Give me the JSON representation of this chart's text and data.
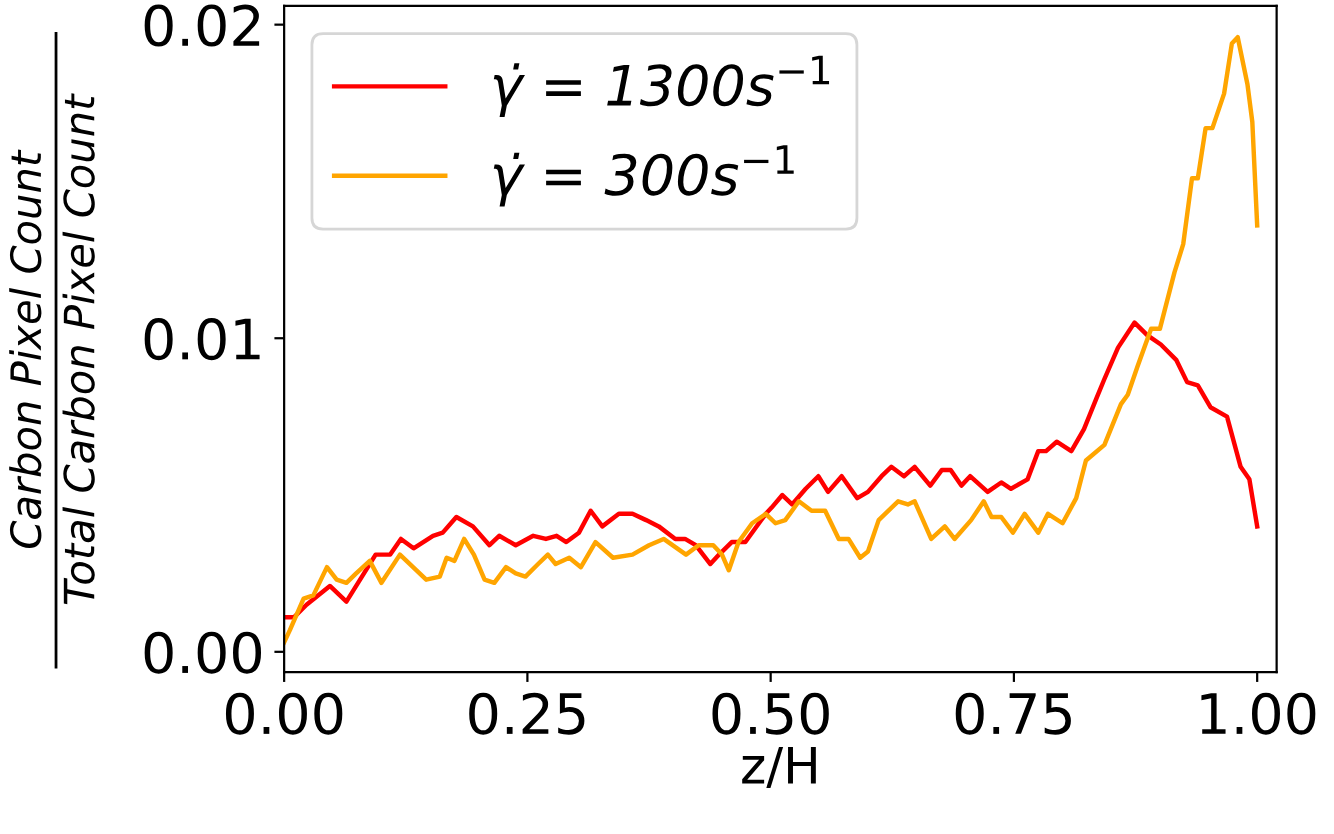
{
  "chart_data": {
    "type": "line",
    "xlabel": "z/H",
    "ylabel": "Carbon Pixel Count\nTotal Carbon Pixel Count",
    "xlim": [
      0,
      1.02
    ],
    "ylim": [
      -0.00065,
      0.0206
    ],
    "xticks": [
      {
        "value": 0,
        "label": "0.00"
      },
      {
        "value": 0.25,
        "label": "0.25"
      },
      {
        "value": 0.5,
        "label": "0.50"
      },
      {
        "value": 0.75,
        "label": "0.75"
      },
      {
        "value": 1.0,
        "label": "1.00"
      }
    ],
    "yticks": [
      {
        "value": 0,
        "label": "0.00"
      },
      {
        "value": 0.01,
        "label": "0.01"
      },
      {
        "value": 0.02,
        "label": "0.02"
      }
    ],
    "grid": false,
    "legend": "top left",
    "marker": "none",
    "line_style": "solid",
    "series": [
      {
        "name": "γ̇ = 1300s$^{−1}$",
        "color": "#ff0000",
        "x": [
          0,
          0.01,
          0.023,
          0.047,
          0.064,
          0.094,
          0.109,
          0.12,
          0.133,
          0.153,
          0.163,
          0.177,
          0.194,
          0.211,
          0.221,
          0.238,
          0.256,
          0.269,
          0.28,
          0.29,
          0.303,
          0.315,
          0.327,
          0.344,
          0.358,
          0.372,
          0.385,
          0.402,
          0.412,
          0.423,
          0.438,
          0.447,
          0.46,
          0.474,
          0.495,
          0.501,
          0.512,
          0.522,
          0.536,
          0.549,
          0.559,
          0.573,
          0.589,
          0.6,
          0.614,
          0.624,
          0.637,
          0.648,
          0.664,
          0.676,
          0.685,
          0.696,
          0.705,
          0.723,
          0.737,
          0.747,
          0.764,
          0.775,
          0.783,
          0.794,
          0.809,
          0.822,
          0.835,
          0.843,
          0.857,
          0.874,
          0.887,
          0.901,
          0.917,
          0.928,
          0.939,
          0.952,
          0.969,
          0.983,
          0.992,
          1.0
        ],
        "values": [
          0.0011,
          0.0011,
          0.0015,
          0.0021,
          0.0016,
          0.0031,
          0.0031,
          0.0036,
          0.0033,
          0.0037,
          0.0038,
          0.0043,
          0.004,
          0.0034,
          0.0037,
          0.0034,
          0.0037,
          0.0036,
          0.0037,
          0.0035,
          0.0038,
          0.0045,
          0.004,
          0.0044,
          0.0044,
          0.0042,
          0.004,
          0.0036,
          0.0036,
          0.0034,
          0.0028,
          0.0031,
          0.0035,
          0.0035,
          0.0044,
          0.0046,
          0.005,
          0.0047,
          0.0052,
          0.0056,
          0.0051,
          0.0056,
          0.0049,
          0.0051,
          0.0056,
          0.0059,
          0.0056,
          0.0059,
          0.0053,
          0.0058,
          0.0058,
          0.0053,
          0.0056,
          0.0051,
          0.0054,
          0.0052,
          0.0055,
          0.0064,
          0.0064,
          0.0067,
          0.0064,
          0.0071,
          0.0081,
          0.0087,
          0.0097,
          0.0105,
          0.0101,
          0.0098,
          0.0093,
          0.0086,
          0.0085,
          0.0078,
          0.0075,
          0.0059,
          0.0055,
          0.004
        ]
      },
      {
        "name": "γ̇ = 300s$^{−1}$",
        "color": "#ffa500",
        "x": [
          0,
          0.006,
          0.02,
          0.03,
          0.044,
          0.054,
          0.064,
          0.074,
          0.088,
          0.1,
          0.119,
          0.136,
          0.146,
          0.16,
          0.167,
          0.175,
          0.185,
          0.195,
          0.206,
          0.216,
          0.228,
          0.238,
          0.248,
          0.261,
          0.271,
          0.279,
          0.293,
          0.305,
          0.32,
          0.338,
          0.358,
          0.375,
          0.39,
          0.413,
          0.426,
          0.441,
          0.45,
          0.457,
          0.467,
          0.481,
          0.495,
          0.505,
          0.515,
          0.529,
          0.542,
          0.556,
          0.57,
          0.58,
          0.592,
          0.6,
          0.611,
          0.631,
          0.641,
          0.648,
          0.665,
          0.679,
          0.689,
          0.706,
          0.719,
          0.727,
          0.737,
          0.749,
          0.761,
          0.775,
          0.785,
          0.8,
          0.814,
          0.824,
          0.843,
          0.86,
          0.867,
          0.877,
          0.891,
          0.9,
          0.915,
          0.924,
          0.933,
          0.939,
          0.947,
          0.954,
          0.966,
          0.974,
          0.98,
          0.99,
          0.995,
          1.0
        ],
        "values": [
          0.0003,
          0.0007,
          0.0017,
          0.0018,
          0.0027,
          0.0023,
          0.0022,
          0.0025,
          0.0029,
          0.0022,
          0.0031,
          0.0026,
          0.0023,
          0.0024,
          0.003,
          0.0029,
          0.0036,
          0.0031,
          0.0023,
          0.0022,
          0.0027,
          0.0025,
          0.0024,
          0.0028,
          0.0031,
          0.0028,
          0.003,
          0.0027,
          0.0035,
          0.003,
          0.0031,
          0.0034,
          0.0036,
          0.0031,
          0.0034,
          0.0034,
          0.0031,
          0.0026,
          0.0035,
          0.0041,
          0.0044,
          0.0041,
          0.0042,
          0.0048,
          0.0045,
          0.0045,
          0.0036,
          0.0036,
          0.003,
          0.0032,
          0.0042,
          0.0048,
          0.0047,
          0.0048,
          0.0036,
          0.004,
          0.0036,
          0.0042,
          0.0048,
          0.0043,
          0.0043,
          0.0038,
          0.0044,
          0.0038,
          0.0044,
          0.0041,
          0.0049,
          0.0061,
          0.0066,
          0.0079,
          0.0082,
          0.0091,
          0.0103,
          0.0103,
          0.0121,
          0.013,
          0.0151,
          0.0151,
          0.0167,
          0.0167,
          0.0178,
          0.0194,
          0.0196,
          0.0181,
          0.0169,
          0.0136
        ]
      }
    ]
  }
}
